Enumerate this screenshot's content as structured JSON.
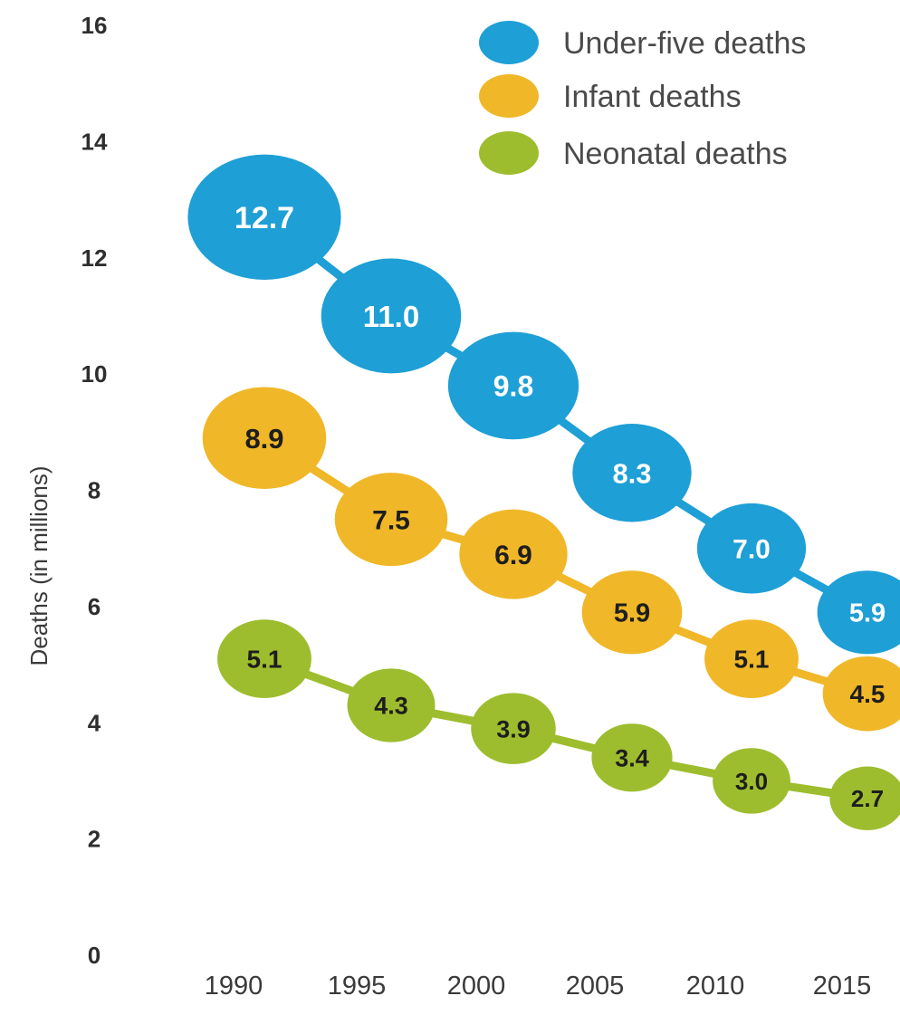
{
  "chart_data": {
    "type": "line",
    "title": "",
    "xlabel": "",
    "ylabel": "Deaths (in millions)",
    "x": [
      "1990",
      "1995",
      "2000",
      "2005",
      "2010",
      "2015"
    ],
    "ylim": [
      0,
      16
    ],
    "yticks": [
      "0",
      "2",
      "4",
      "6",
      "8",
      "10",
      "12",
      "14",
      "16"
    ],
    "grid": false,
    "legend_position": "top-right",
    "series": [
      {
        "name": "Under-five deaths",
        "color": "#1e9fd6",
        "label_color": "#ffffff",
        "values": [
          12.7,
          11.0,
          9.8,
          8.3,
          7.0,
          5.9
        ],
        "labels": [
          "12.7",
          "11.0",
          "9.8",
          "8.3",
          "7.0",
          "5.9"
        ]
      },
      {
        "name": "Infant deaths",
        "color": "#f0b728",
        "label_color": "#1e1e1e",
        "values": [
          8.9,
          7.5,
          6.9,
          5.9,
          5.1,
          4.5
        ],
        "labels": [
          "8.9",
          "7.5",
          "6.9",
          "5.9",
          "5.1",
          "4.5"
        ]
      },
      {
        "name": "Neonatal deaths",
        "color": "#9dbd2e",
        "label_color": "#1e1e1e",
        "values": [
          5.1,
          4.3,
          3.9,
          3.4,
          3.0,
          2.7
        ],
        "labels": [
          "5.1",
          "4.3",
          "3.9",
          "3.4",
          "3.0",
          "2.7"
        ]
      }
    ]
  }
}
